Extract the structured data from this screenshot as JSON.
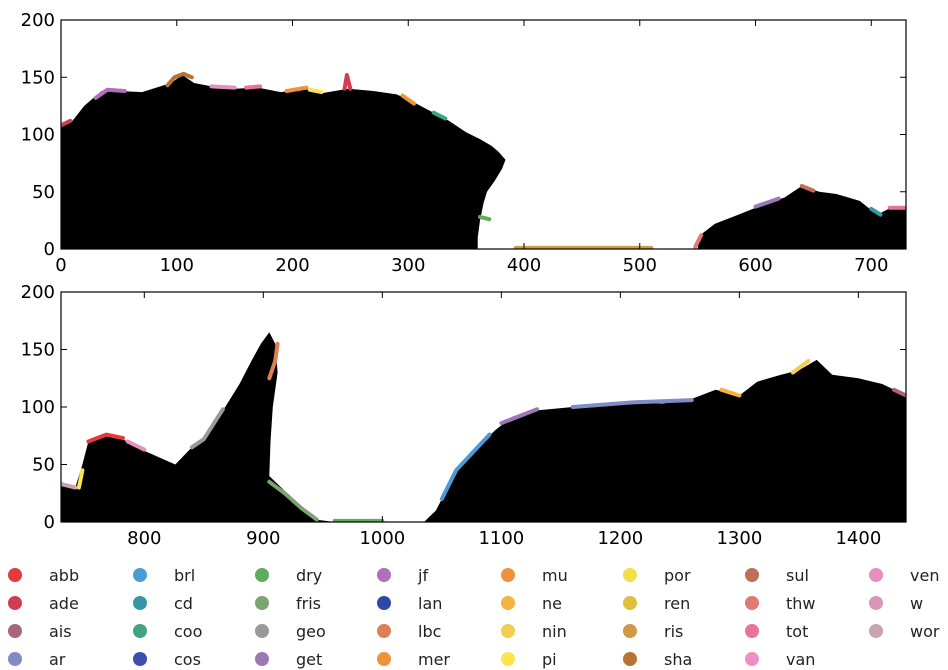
{
  "chart_data": [
    {
      "type": "area",
      "title": "",
      "xlabel": "",
      "ylabel": "",
      "xlim": [
        0,
        730
      ],
      "ylim": [
        0,
        200
      ],
      "xticks": [
        0,
        100,
        200,
        300,
        400,
        500,
        600,
        700
      ],
      "yticks": [
        0,
        50,
        100,
        150,
        200
      ],
      "grid": false,
      "fill_color": "#000000",
      "land_profile": [
        {
          "x": 0,
          "y": 108
        },
        {
          "x": 10,
          "y": 112
        },
        {
          "x": 20,
          "y": 125
        },
        {
          "x": 35,
          "y": 138
        },
        {
          "x": 50,
          "y": 138
        },
        {
          "x": 70,
          "y": 137
        },
        {
          "x": 95,
          "y": 145
        },
        {
          "x": 105,
          "y": 152
        },
        {
          "x": 115,
          "y": 145
        },
        {
          "x": 130,
          "y": 142
        },
        {
          "x": 150,
          "y": 140
        },
        {
          "x": 170,
          "y": 141
        },
        {
          "x": 190,
          "y": 137
        },
        {
          "x": 210,
          "y": 140
        },
        {
          "x": 225,
          "y": 136
        },
        {
          "x": 248,
          "y": 140
        },
        {
          "x": 270,
          "y": 138
        },
        {
          "x": 290,
          "y": 135
        },
        {
          "x": 305,
          "y": 128
        },
        {
          "x": 320,
          "y": 120
        },
        {
          "x": 335,
          "y": 112
        },
        {
          "x": 350,
          "y": 102
        },
        {
          "x": 362,
          "y": 96
        },
        {
          "x": 372,
          "y": 90
        },
        {
          "x": 378,
          "y": 85
        },
        {
          "x": 384,
          "y": 78
        },
        {
          "x": 381,
          "y": 70
        },
        {
          "x": 375,
          "y": 60
        },
        {
          "x": 368,
          "y": 50
        },
        {
          "x": 365,
          "y": 40
        },
        {
          "x": 362,
          "y": 25
        },
        {
          "x": 360,
          "y": 10
        },
        {
          "x": 360,
          "y": 0
        },
        {
          "x": 550,
          "y": 0
        },
        {
          "x": 552,
          "y": 12
        },
        {
          "x": 565,
          "y": 22
        },
        {
          "x": 585,
          "y": 30
        },
        {
          "x": 605,
          "y": 38
        },
        {
          "x": 625,
          "y": 45
        },
        {
          "x": 640,
          "y": 55
        },
        {
          "x": 655,
          "y": 50
        },
        {
          "x": 670,
          "y": 48
        },
        {
          "x": 690,
          "y": 42
        },
        {
          "x": 705,
          "y": 30
        },
        {
          "x": 715,
          "y": 35
        },
        {
          "x": 730,
          "y": 35
        }
      ],
      "labeled_segments": [
        {
          "label": "ade",
          "color": "#d43d51",
          "points": [
            {
              "x": 0,
              "y": 108
            },
            {
              "x": 8,
              "y": 112
            }
          ]
        },
        {
          "label": "jf",
          "color": "#b06fb6",
          "points": [
            {
              "x": 30,
              "y": 132
            },
            {
              "x": 40,
              "y": 139
            },
            {
              "x": 55,
              "y": 138
            }
          ]
        },
        {
          "label": "sha",
          "color": "#b87333",
          "points": [
            {
              "x": 92,
              "y": 143
            },
            {
              "x": 98,
              "y": 150
            },
            {
              "x": 106,
              "y": 153
            },
            {
              "x": 113,
              "y": 150
            }
          ]
        },
        {
          "label": "ven",
          "color": "#e68fc0",
          "points": [
            {
              "x": 130,
              "y": 142
            },
            {
              "x": 150,
              "y": 141
            }
          ]
        },
        {
          "label": "tot",
          "color": "#e8749c",
          "points": [
            {
              "x": 160,
              "y": 141
            },
            {
              "x": 172,
              "y": 142
            }
          ]
        },
        {
          "label": "mer",
          "color": "#f0913c",
          "points": [
            {
              "x": 195,
              "y": 138
            },
            {
              "x": 212,
              "y": 141
            }
          ]
        },
        {
          "label": "pi",
          "color": "#fbe54b",
          "points": [
            {
              "x": 215,
              "y": 139
            },
            {
              "x": 225,
              "y": 137
            }
          ]
        },
        {
          "label": "ade",
          "color": "#d43d51",
          "points": [
            {
              "x": 245,
              "y": 140
            },
            {
              "x": 247,
              "y": 152
            },
            {
              "x": 250,
              "y": 140
            }
          ]
        },
        {
          "label": "mu",
          "color": "#f0913c",
          "points": [
            {
              "x": 295,
              "y": 134
            },
            {
              "x": 305,
              "y": 127
            }
          ]
        },
        {
          "label": "coo",
          "color": "#3fa57f",
          "points": [
            {
              "x": 322,
              "y": 119
            },
            {
              "x": 332,
              "y": 114
            }
          ]
        },
        {
          "label": "dry",
          "color": "#5cad5c",
          "points": [
            {
              "x": 362,
              "y": 28
            },
            {
              "x": 370,
              "y": 26
            }
          ]
        },
        {
          "label": "ris",
          "color": "#cf9945",
          "points": [
            {
              "x": 393,
              "y": 1
            },
            {
              "x": 510,
              "y": 1
            }
          ]
        },
        {
          "label": "thw",
          "color": "#e07b72",
          "points": [
            {
              "x": 548,
              "y": 2
            },
            {
              "x": 553,
              "y": 12
            }
          ]
        },
        {
          "label": "get",
          "color": "#9c78b4",
          "points": [
            {
              "x": 600,
              "y": 37
            },
            {
              "x": 620,
              "y": 44
            }
          ]
        },
        {
          "label": "sul",
          "color": "#c0705a",
          "points": [
            {
              "x": 640,
              "y": 55
            },
            {
              "x": 650,
              "y": 51
            }
          ]
        },
        {
          "label": "cd",
          "color": "#3796a3",
          "points": [
            {
              "x": 700,
              "y": 35
            },
            {
              "x": 708,
              "y": 30
            }
          ]
        },
        {
          "label": "tot",
          "color": "#e8749c",
          "points": [
            {
              "x": 716,
              "y": 36
            },
            {
              "x": 730,
              "y": 36
            }
          ]
        }
      ]
    },
    {
      "type": "area",
      "title": "",
      "xlabel": "",
      "ylabel": "",
      "xlim": [
        730,
        1440
      ],
      "ylim": [
        0,
        200
      ],
      "xticks": [
        800,
        900,
        1000,
        1100,
        1200,
        1300,
        1400
      ],
      "yticks": [
        0,
        50,
        100,
        150,
        200
      ],
      "grid": false,
      "fill_color": "#000000",
      "land_profile": [
        {
          "x": 730,
          "y": 35
        },
        {
          "x": 742,
          "y": 30
        },
        {
          "x": 748,
          "y": 50
        },
        {
          "x": 753,
          "y": 70
        },
        {
          "x": 768,
          "y": 75
        },
        {
          "x": 782,
          "y": 72
        },
        {
          "x": 800,
          "y": 62
        },
        {
          "x": 815,
          "y": 55
        },
        {
          "x": 826,
          "y": 50
        },
        {
          "x": 840,
          "y": 65
        },
        {
          "x": 850,
          "y": 70
        },
        {
          "x": 860,
          "y": 90
        },
        {
          "x": 868,
          "y": 100
        },
        {
          "x": 880,
          "y": 120
        },
        {
          "x": 890,
          "y": 140
        },
        {
          "x": 898,
          "y": 155
        },
        {
          "x": 905,
          "y": 165
        },
        {
          "x": 910,
          "y": 155
        },
        {
          "x": 912,
          "y": 130
        },
        {
          "x": 908,
          "y": 100
        },
        {
          "x": 906,
          "y": 70
        },
        {
          "x": 905,
          "y": 40
        },
        {
          "x": 915,
          "y": 30
        },
        {
          "x": 930,
          "y": 15
        },
        {
          "x": 945,
          "y": 2
        },
        {
          "x": 960,
          "y": 0
        },
        {
          "x": 1035,
          "y": 0
        },
        {
          "x": 1045,
          "y": 10
        },
        {
          "x": 1055,
          "y": 30
        },
        {
          "x": 1065,
          "y": 50
        },
        {
          "x": 1080,
          "y": 65
        },
        {
          "x": 1095,
          "y": 80
        },
        {
          "x": 1110,
          "y": 92
        },
        {
          "x": 1130,
          "y": 97
        },
        {
          "x": 1160,
          "y": 100
        },
        {
          "x": 1190,
          "y": 101
        },
        {
          "x": 1210,
          "y": 104
        },
        {
          "x": 1235,
          "y": 103
        },
        {
          "x": 1260,
          "y": 107
        },
        {
          "x": 1280,
          "y": 115
        },
        {
          "x": 1300,
          "y": 110
        },
        {
          "x": 1315,
          "y": 122
        },
        {
          "x": 1335,
          "y": 128
        },
        {
          "x": 1350,
          "y": 132
        },
        {
          "x": 1365,
          "y": 141
        },
        {
          "x": 1378,
          "y": 128
        },
        {
          "x": 1400,
          "y": 125
        },
        {
          "x": 1420,
          "y": 120
        },
        {
          "x": 1440,
          "y": 110
        }
      ],
      "labeled_segments": [
        {
          "label": "wor",
          "color": "#c9a3ad",
          "points": [
            {
              "x": 730,
              "y": 33
            },
            {
              "x": 742,
              "y": 30
            }
          ]
        },
        {
          "label": "pi",
          "color": "#fbe54b",
          "points": [
            {
              "x": 745,
              "y": 30
            },
            {
              "x": 748,
              "y": 45
            }
          ]
        },
        {
          "label": "abb",
          "color": "#e6393b",
          "points": [
            {
              "x": 753,
              "y": 70
            },
            {
              "x": 768,
              "y": 76
            },
            {
              "x": 782,
              "y": 73
            }
          ]
        },
        {
          "label": "ven",
          "color": "#e68fc0",
          "points": [
            {
              "x": 786,
              "y": 70
            },
            {
              "x": 800,
              "y": 63
            }
          ]
        },
        {
          "label": "geo",
          "color": "#9a9a9a",
          "points": [
            {
              "x": 840,
              "y": 65
            },
            {
              "x": 850,
              "y": 72
            },
            {
              "x": 858,
              "y": 85
            },
            {
              "x": 866,
              "y": 98
            }
          ]
        },
        {
          "label": "lbc",
          "color": "#e07f55",
          "points": [
            {
              "x": 905,
              "y": 125
            },
            {
              "x": 910,
              "y": 140
            },
            {
              "x": 912,
              "y": 155
            }
          ]
        },
        {
          "label": "fris",
          "color": "#7ca374",
          "points": [
            {
              "x": 905,
              "y": 35
            },
            {
              "x": 918,
              "y": 25
            },
            {
              "x": 932,
              "y": 12
            },
            {
              "x": 945,
              "y": 2
            }
          ]
        },
        {
          "label": "dry",
          "color": "#5cad5c",
          "points": [
            {
              "x": 960,
              "y": 1
            },
            {
              "x": 1000,
              "y": 1
            }
          ]
        },
        {
          "label": "brl",
          "color": "#4a9bd6",
          "points": [
            {
              "x": 1050,
              "y": 20
            },
            {
              "x": 1062,
              "y": 45
            },
            {
              "x": 1080,
              "y": 65
            },
            {
              "x": 1090,
              "y": 76
            }
          ]
        },
        {
          "label": "get",
          "color": "#9c78b4",
          "points": [
            {
              "x": 1100,
              "y": 86
            },
            {
              "x": 1130,
              "y": 98
            }
          ]
        },
        {
          "label": "ar",
          "color": "#7f8dc4",
          "points": [
            {
              "x": 1160,
              "y": 100
            },
            {
              "x": 1210,
              "y": 104
            },
            {
              "x": 1260,
              "y": 106
            }
          ]
        },
        {
          "label": "ne",
          "color": "#f5b342",
          "points": [
            {
              "x": 1285,
              "y": 115
            },
            {
              "x": 1300,
              "y": 110
            }
          ]
        },
        {
          "label": "nin",
          "color": "#f5cd4c",
          "points": [
            {
              "x": 1345,
              "y": 130
            },
            {
              "x": 1358,
              "y": 140
            }
          ]
        },
        {
          "label": "ais",
          "color": "#a9647e",
          "points": [
            {
              "x": 1430,
              "y": 115
            },
            {
              "x": 1440,
              "y": 110
            }
          ]
        }
      ]
    }
  ],
  "legend": [
    {
      "label": "abb",
      "color": "#e6393b"
    },
    {
      "label": "ade",
      "color": "#d43d51"
    },
    {
      "label": "ais",
      "color": "#a9647e"
    },
    {
      "label": "ar",
      "color": "#7f8dc4"
    },
    {
      "label": "brl",
      "color": "#4a9bd6"
    },
    {
      "label": "cd",
      "color": "#3796a3"
    },
    {
      "label": "coo",
      "color": "#3fa57f"
    },
    {
      "label": "cos",
      "color": "#3a4fae"
    },
    {
      "label": "dry",
      "color": "#5cad5c"
    },
    {
      "label": "fris",
      "color": "#7ca374"
    },
    {
      "label": "geo",
      "color": "#9a9a9a"
    },
    {
      "label": "get",
      "color": "#9c78b4"
    },
    {
      "label": "jf",
      "color": "#b06fb6"
    },
    {
      "label": "lan",
      "color": "#2c49a8"
    },
    {
      "label": "lbc",
      "color": "#e07f55"
    },
    {
      "label": "mer",
      "color": "#f0913c"
    },
    {
      "label": "mu",
      "color": "#f0913c"
    },
    {
      "label": "ne",
      "color": "#f5b342"
    },
    {
      "label": "nin",
      "color": "#f5cd4c"
    },
    {
      "label": "pi",
      "color": "#fbe54b"
    },
    {
      "label": "por",
      "color": "#f1de48"
    },
    {
      "label": "ren",
      "color": "#e0bf3e"
    },
    {
      "label": "ris",
      "color": "#cf9945"
    },
    {
      "label": "sha",
      "color": "#b87333"
    },
    {
      "label": "sul",
      "color": "#c0705a"
    },
    {
      "label": "thw",
      "color": "#e07b72"
    },
    {
      "label": "tot",
      "color": "#e8749c"
    },
    {
      "label": "van",
      "color": "#ef8ec6"
    },
    {
      "label": "ven",
      "color": "#e68fc0"
    },
    {
      "label": "w",
      "color": "#d996b8"
    },
    {
      "label": "wor",
      "color": "#c9a3ad"
    }
  ]
}
